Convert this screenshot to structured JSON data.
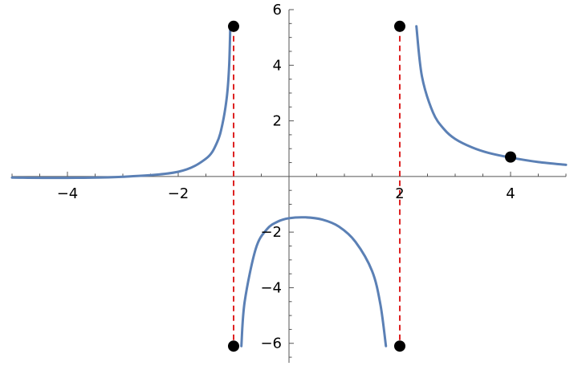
{
  "chart_data": {
    "type": "line",
    "title": "",
    "xlabel": "",
    "ylabel": "",
    "xlim": [
      -5,
      5
    ],
    "ylim": [
      -6.7,
      6
    ],
    "x_ticks": [
      {
        "value": -4,
        "label": "−4"
      },
      {
        "value": -2,
        "label": "−2"
      },
      {
        "value": 2,
        "label": "2"
      },
      {
        "value": 4,
        "label": "4"
      }
    ],
    "y_ticks": [
      {
        "value": 6,
        "label": "6"
      },
      {
        "value": 4,
        "label": "4"
      },
      {
        "value": 2,
        "label": "2"
      },
      {
        "value": -2,
        "label": "−2"
      },
      {
        "value": -4,
        "label": "−4"
      },
      {
        "value": -6,
        "label": "−6"
      }
    ],
    "series": [
      {
        "color": "#5b80b5",
        "segments": [
          {
            "x": [
              -5,
              -4,
              -3,
              -2,
              -1.5,
              -1.3,
              -1.2,
              -1.12,
              -1.08,
              -1.06
            ],
            "y": [
              -0.04,
              -0.05,
              -0.01,
              0.17,
              0.64,
              1.22,
              1.9,
              2.9,
              4.0,
              5.4
            ]
          },
          {
            "x": [
              -0.86,
              -0.8,
              -0.6,
              -0.4,
              -0.2,
              0,
              0.3,
              0.6,
              0.9,
              1.2,
              1.5,
              1.65,
              1.75
            ],
            "y": [
              -6.1,
              -4.5,
              -2.6,
              -1.9,
              -1.62,
              -1.5,
              -1.47,
              -1.55,
              -1.8,
              -2.35,
              -3.4,
              -4.6,
              -6.1
            ]
          },
          {
            "x": [
              2.3,
              2.4,
              2.6,
              2.8,
              3,
              3.3,
              3.6,
              4,
              4.5,
              5
            ],
            "y": [
              5.4,
              3.6,
              2.3,
              1.7,
              1.35,
              1.05,
              0.85,
              0.68,
              0.52,
              0.42
            ]
          }
        ]
      }
    ],
    "asymptotes": {
      "color": "#dd2222",
      "lines": [
        {
          "x": -1
        },
        {
          "x": 2
        }
      ]
    },
    "points": [
      {
        "x": -1,
        "y": 5.4
      },
      {
        "x": -1,
        "y": -6.1
      },
      {
        "x": 2,
        "y": 5.4
      },
      {
        "x": 2,
        "y": -6.1
      },
      {
        "x": 4,
        "y": 0.7
      }
    ],
    "point_color": "#000000",
    "axis_color": "#555555"
  }
}
